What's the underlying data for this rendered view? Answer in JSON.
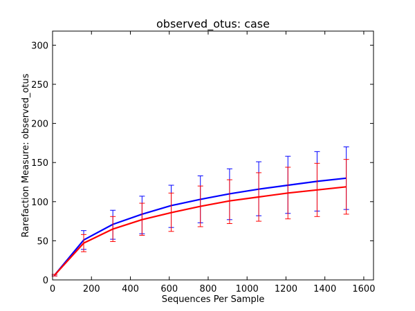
{
  "chart_data": {
    "type": "line",
    "title": "observed_otus: case",
    "xlabel": "Sequences Per Sample",
    "ylabel": "Rarefaction Measure: observed_otus",
    "xlim": [
      0,
      1650
    ],
    "ylim": [
      0,
      318
    ],
    "xticks": [
      0,
      200,
      400,
      600,
      800,
      1000,
      1200,
      1400,
      1600
    ],
    "yticks": [
      0,
      50,
      100,
      150,
      200,
      250,
      300
    ],
    "x": [
      10,
      160,
      310,
      460,
      610,
      760,
      910,
      1060,
      1210,
      1360,
      1510
    ],
    "series": [
      {
        "color": "#0000ff",
        "values": [
          6,
          51,
          71,
          84,
          95,
          103,
          110,
          116,
          121,
          126,
          130
        ],
        "err_low": [
          5,
          39,
          52,
          59,
          67,
          73,
          77,
          82,
          85,
          88,
          90
        ],
        "err_high": [
          7,
          63,
          89,
          107,
          121,
          133,
          142,
          151,
          158,
          164,
          170
        ]
      },
      {
        "color": "#ff0000",
        "values": [
          6,
          47,
          65,
          77,
          86,
          94,
          101,
          106,
          111,
          115,
          119
        ],
        "err_low": [
          5,
          36,
          49,
          57,
          62,
          68,
          72,
          75,
          78,
          81,
          84
        ],
        "err_high": [
          7,
          58,
          81,
          98,
          111,
          120,
          128,
          137,
          144,
          149,
          154
        ]
      }
    ],
    "grid": false,
    "legend": "none"
  }
}
